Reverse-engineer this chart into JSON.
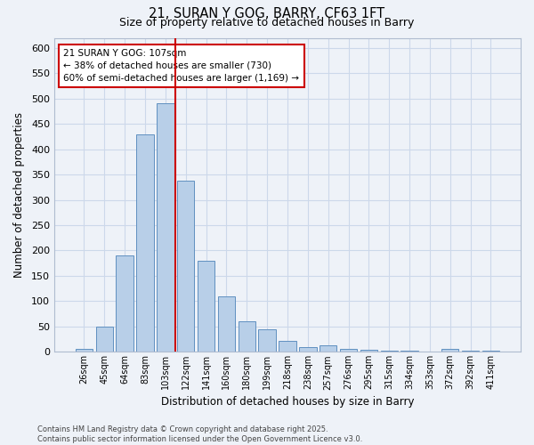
{
  "title1": "21, SURAN Y GOG, BARRY, CF63 1FT",
  "title2": "Size of property relative to detached houses in Barry",
  "xlabel": "Distribution of detached houses by size in Barry",
  "ylabel": "Number of detached properties",
  "categories": [
    "26sqm",
    "45sqm",
    "64sqm",
    "83sqm",
    "103sqm",
    "122sqm",
    "141sqm",
    "160sqm",
    "180sqm",
    "199sqm",
    "218sqm",
    "238sqm",
    "257sqm",
    "276sqm",
    "295sqm",
    "315sqm",
    "334sqm",
    "353sqm",
    "372sqm",
    "392sqm",
    "411sqm"
  ],
  "values": [
    5,
    50,
    190,
    430,
    490,
    338,
    180,
    110,
    60,
    45,
    22,
    10,
    12,
    6,
    4,
    3,
    2,
    1,
    5,
    2,
    3
  ],
  "bar_color": "#b8cfe8",
  "bar_edge_color": "#6090c0",
  "grid_color": "#ccd8ea",
  "red_line_x": 4.5,
  "annotation_text": "21 SURAN Y GOG: 107sqm\n← 38% of detached houses are smaller (730)\n60% of semi-detached houses are larger (1,169) →",
  "annotation_box_color": "#ffffff",
  "annotation_box_edge": "#cc0000",
  "red_line_color": "#cc0000",
  "ylim": [
    0,
    620
  ],
  "yticks": [
    0,
    50,
    100,
    150,
    200,
    250,
    300,
    350,
    400,
    450,
    500,
    550,
    600
  ],
  "footer": "Contains HM Land Registry data © Crown copyright and database right 2025.\nContains public sector information licensed under the Open Government Licence v3.0.",
  "background_color": "#eef2f8"
}
